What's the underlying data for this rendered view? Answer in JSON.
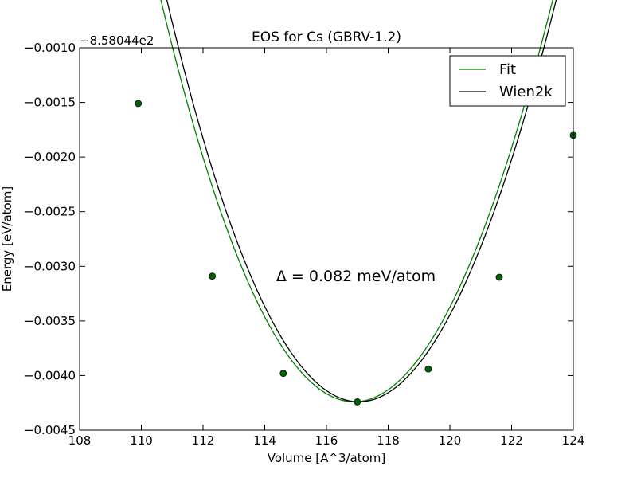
{
  "chart_data": {
    "type": "line",
    "title": "EOS for Cs (GBRV-1.2)",
    "xlabel": "Volume [A^3/atom]",
    "ylabel": "Energy [eV/atom]",
    "y_offset_label": "−8.58044e2",
    "xlim": [
      108,
      124
    ],
    "ylim": [
      -0.0045,
      -0.001
    ],
    "xticks": [
      108,
      110,
      112,
      114,
      116,
      118,
      120,
      122,
      124
    ],
    "xtick_labels": [
      "108",
      "110",
      "112",
      "114",
      "116",
      "118",
      "120",
      "122",
      "124"
    ],
    "yticks": [
      -0.001,
      -0.0015,
      -0.002,
      -0.0025,
      -0.003,
      -0.0035,
      -0.004,
      -0.0045
    ],
    "ytick_labels": [
      "−0.0010",
      "−0.0015",
      "−0.0020",
      "−0.0025",
      "−0.0030",
      "−0.0035",
      "−0.0040",
      "−0.0045"
    ],
    "grid": false,
    "legend_position": "top-right",
    "annotation": "Δ = 0.082 meV/atom",
    "points": {
      "x": [
        109.9,
        112.3,
        114.6,
        117.0,
        119.3,
        121.6,
        124.0
      ],
      "y": [
        -0.00151,
        -0.00309,
        -0.00398,
        -0.00424,
        -0.00394,
        -0.0031,
        -0.0018
      ],
      "color": "#006400"
    },
    "series": [
      {
        "name": "Fit",
        "color": "#008000",
        "v0": 116.9,
        "e0": -0.00424,
        "a": 9.13e-05,
        "b": 3.8e-06,
        "x_range": [
          109.9,
          124.0
        ]
      },
      {
        "name": "Wien2k",
        "color": "#000000",
        "v0": 117.05,
        "e0": -0.00424,
        "a": 9.25e-05,
        "b": 4e-06,
        "x_range": [
          109.9,
          124.0
        ]
      }
    ]
  }
}
